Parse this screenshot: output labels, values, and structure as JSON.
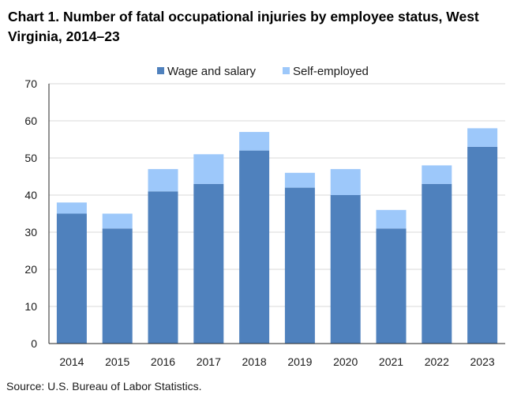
{
  "title": "Chart 1. Number of fatal occupational injuries by employee status, West Virginia, 2014–23",
  "source": "Source: U.S. Bureau of Labor Statistics.",
  "colors": {
    "wage_and_salary": "#4f81bd",
    "self_employed": "#9dc8fa",
    "gridline": "#d9d9d9",
    "axis": "#262626"
  },
  "chart_data": {
    "type": "bar",
    "stacked": true,
    "title": "Chart 1. Number of fatal occupational injuries by employee status, West Virginia, 2014–23",
    "xlabel": "",
    "ylabel": "",
    "categories": [
      "2014",
      "2015",
      "2016",
      "2017",
      "2018",
      "2019",
      "2020",
      "2021",
      "2022",
      "2023"
    ],
    "series": [
      {
        "name": "Wage and salary",
        "values": [
          35,
          31,
          41,
          43,
          52,
          42,
          40,
          31,
          43,
          53
        ]
      },
      {
        "name": "Self-employed",
        "values": [
          3,
          4,
          6,
          8,
          5,
          4,
          7,
          5,
          5,
          5
        ]
      }
    ],
    "ylim": [
      0,
      70
    ],
    "yticks": [
      0,
      10,
      20,
      30,
      40,
      50,
      60,
      70
    ],
    "grid": true,
    "legend_position": "top"
  }
}
